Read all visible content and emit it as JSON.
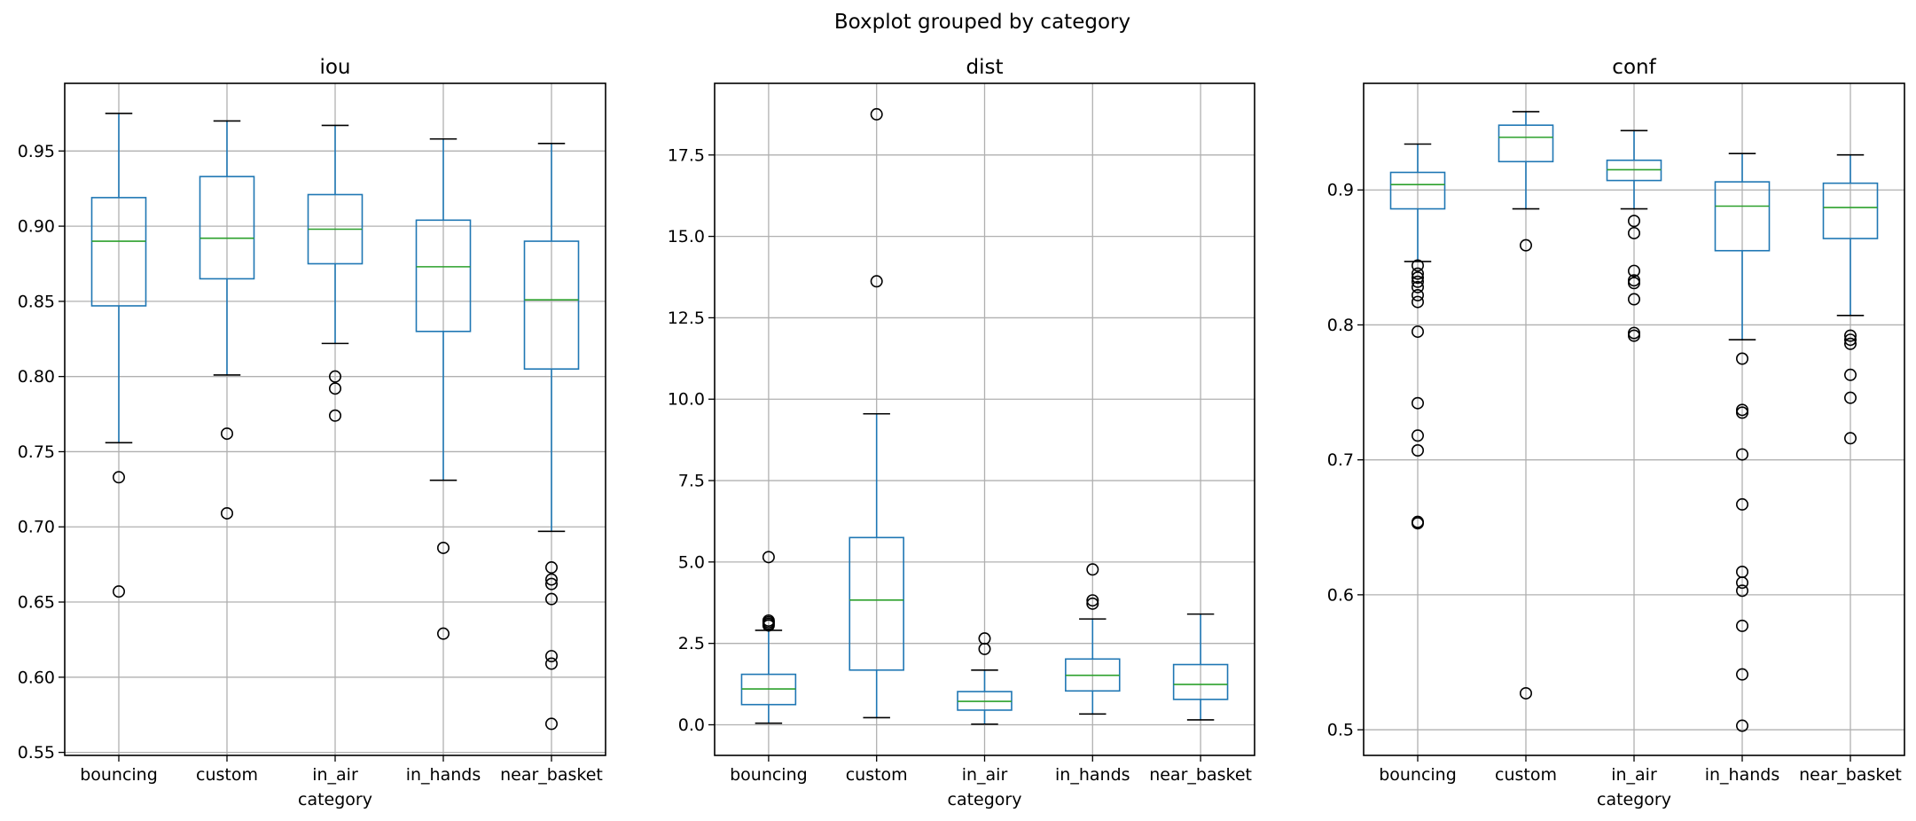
{
  "suptitle": "Boxplot grouped by category",
  "chart_data": [
    {
      "type": "boxplot",
      "title": "iou",
      "xlabel": "category",
      "ylabel": "",
      "categories": [
        "bouncing",
        "custom",
        "in_air",
        "in_hands",
        "near_basket"
      ],
      "ylim": [
        0.548,
        0.995
      ],
      "yticks": [
        0.55,
        0.6,
        0.65,
        0.7,
        0.75,
        0.8,
        0.85,
        0.9,
        0.95
      ],
      "ytick_labels": [
        "0.55",
        "0.60",
        "0.65",
        "0.70",
        "0.75",
        "0.80",
        "0.85",
        "0.90",
        "0.95"
      ],
      "grid": true,
      "boxes": [
        {
          "whislo": 0.756,
          "q1": 0.847,
          "med": 0.89,
          "q3": 0.919,
          "whishi": 0.975,
          "fliers": [
            0.733,
            0.657
          ]
        },
        {
          "whislo": 0.801,
          "q1": 0.865,
          "med": 0.892,
          "q3": 0.933,
          "whishi": 0.97,
          "fliers": [
            0.762,
            0.709
          ]
        },
        {
          "whislo": 0.822,
          "q1": 0.875,
          "med": 0.898,
          "q3": 0.921,
          "whishi": 0.967,
          "fliers": [
            0.8,
            0.792,
            0.774
          ]
        },
        {
          "whislo": 0.731,
          "q1": 0.83,
          "med": 0.873,
          "q3": 0.904,
          "whishi": 0.958,
          "fliers": [
            0.686,
            0.629
          ]
        },
        {
          "whislo": 0.697,
          "q1": 0.805,
          "med": 0.851,
          "q3": 0.89,
          "whishi": 0.955,
          "fliers": [
            0.673,
            0.665,
            0.662,
            0.652,
            0.614,
            0.609,
            0.569
          ]
        }
      ]
    },
    {
      "type": "boxplot",
      "title": "dist",
      "xlabel": "category",
      "ylabel": "",
      "categories": [
        "bouncing",
        "custom",
        "in_air",
        "in_hands",
        "near_basket"
      ],
      "ylim": [
        -0.94,
        19.7
      ],
      "yticks": [
        0.0,
        2.5,
        5.0,
        7.5,
        10.0,
        12.5,
        15.0,
        17.5
      ],
      "ytick_labels": [
        "0.0",
        "2.5",
        "5.0",
        "7.5",
        "10.0",
        "12.5",
        "15.0",
        "17.5"
      ],
      "grid": true,
      "boxes": [
        {
          "whislo": 0.05,
          "q1": 0.62,
          "med": 1.1,
          "q3": 1.55,
          "whishi": 2.9,
          "fliers": [
            5.15,
            3.2,
            3.15,
            3.1,
            3.05
          ]
        },
        {
          "whislo": 0.22,
          "q1": 1.68,
          "med": 3.83,
          "q3": 5.75,
          "whishi": 9.55,
          "fliers": [
            18.75,
            13.62
          ]
        },
        {
          "whislo": 0.02,
          "q1": 0.45,
          "med": 0.72,
          "q3": 1.02,
          "whishi": 1.68,
          "fliers": [
            2.65,
            2.33
          ]
        },
        {
          "whislo": 0.33,
          "q1": 1.04,
          "med": 1.52,
          "q3": 2.02,
          "whishi": 3.25,
          "fliers": [
            4.77,
            3.82,
            3.72
          ]
        },
        {
          "whislo": 0.15,
          "q1": 0.78,
          "med": 1.24,
          "q3": 1.85,
          "whishi": 3.4,
          "fliers": []
        }
      ]
    },
    {
      "type": "boxplot",
      "title": "conf",
      "xlabel": "category",
      "ylabel": "",
      "categories": [
        "bouncing",
        "custom",
        "in_air",
        "in_hands",
        "near_basket"
      ],
      "ylim": [
        0.481,
        0.979
      ],
      "yticks": [
        0.5,
        0.6,
        0.7,
        0.8,
        0.9
      ],
      "ytick_labels": [
        "0.5",
        "0.6",
        "0.7",
        "0.8",
        "0.9"
      ],
      "grid": true,
      "boxes": [
        {
          "whislo": 0.847,
          "q1": 0.886,
          "med": 0.904,
          "q3": 0.913,
          "whishi": 0.934,
          "fliers": [
            0.844,
            0.838,
            0.835,
            0.832,
            0.828,
            0.822,
            0.817,
            0.795,
            0.742,
            0.718,
            0.707,
            0.654,
            0.653
          ]
        },
        {
          "whislo": 0.886,
          "q1": 0.921,
          "med": 0.939,
          "q3": 0.948,
          "whishi": 0.958,
          "fliers": [
            0.859,
            0.527
          ]
        },
        {
          "whislo": 0.886,
          "q1": 0.907,
          "med": 0.915,
          "q3": 0.922,
          "whishi": 0.944,
          "fliers": [
            0.877,
            0.868,
            0.84,
            0.833,
            0.831,
            0.819,
            0.794,
            0.792
          ]
        },
        {
          "whislo": 0.789,
          "q1": 0.855,
          "med": 0.888,
          "q3": 0.906,
          "whishi": 0.927,
          "fliers": [
            0.775,
            0.737,
            0.735,
            0.704,
            0.667,
            0.617,
            0.609,
            0.603,
            0.577,
            0.541,
            0.503
          ]
        },
        {
          "whislo": 0.807,
          "q1": 0.864,
          "med": 0.887,
          "q3": 0.905,
          "whishi": 0.926,
          "fliers": [
            0.792,
            0.789,
            0.786,
            0.763,
            0.746,
            0.716
          ]
        }
      ]
    }
  ],
  "colors": {
    "box": "#1f77b4",
    "median": "#2ca02c",
    "grid": "#b0b0b0",
    "axes": "#000000",
    "flier": "#000000"
  }
}
